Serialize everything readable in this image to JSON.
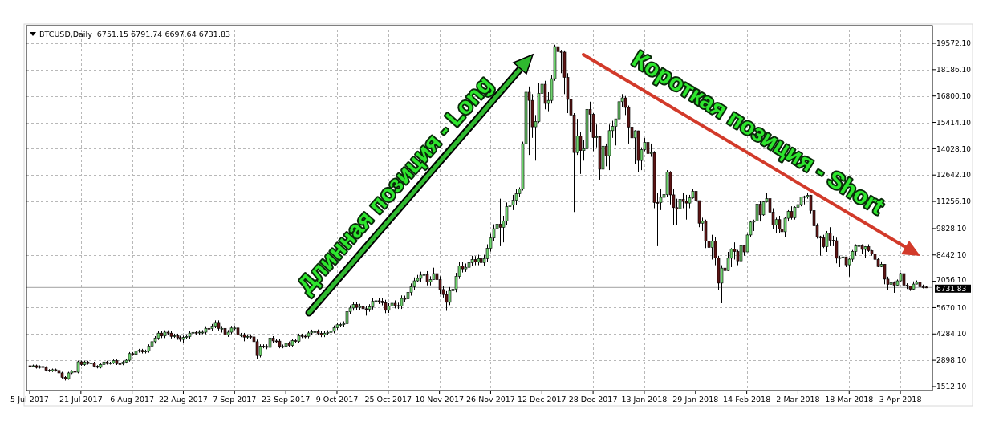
{
  "chart_data": {
    "type": "candlestick",
    "title": "BTCUSD,Daily  6751.15 6791.74 6697.64 6731.83",
    "xlim": [
      "2017-07-04",
      "2018-04-13"
    ],
    "ylim": [
      1300,
      20290
    ],
    "grid": true,
    "xticks": [
      {
        "value": "2017-07-05",
        "label": "5 Jul 2017"
      },
      {
        "value": "2017-07-21",
        "label": "21 Jul 2017"
      },
      {
        "value": "2017-08-06",
        "label": "6 Aug 2017"
      },
      {
        "value": "2017-08-22",
        "label": "22 Aug 2017"
      },
      {
        "value": "2017-09-07",
        "label": "7 Sep 2017"
      },
      {
        "value": "2017-09-23",
        "label": "23 Sep 2017"
      },
      {
        "value": "2017-10-09",
        "label": "9 Oct 2017"
      },
      {
        "value": "2017-10-25",
        "label": "25 Oct 2017"
      },
      {
        "value": "2017-11-10",
        "label": "10 Nov 2017"
      },
      {
        "value": "2017-11-26",
        "label": "26 Nov 2017"
      },
      {
        "value": "2017-12-12",
        "label": "12 Dec 2017"
      },
      {
        "value": "2017-12-28",
        "label": "28 Dec 2017"
      },
      {
        "value": "2018-01-13",
        "label": "13 Jan 2018"
      },
      {
        "value": "2018-01-29",
        "label": "29 Jan 2018"
      },
      {
        "value": "2018-02-14",
        "label": "14 Feb 2018"
      },
      {
        "value": "2018-03-02",
        "label": "2 Mar 2018"
      },
      {
        "value": "2018-03-18",
        "label": "18 Mar 2018"
      },
      {
        "value": "2018-04-03",
        "label": "3 Apr 2018"
      }
    ],
    "yticks": [
      {
        "value": 19572.1,
        "label": "19572.10"
      },
      {
        "value": 18186.1,
        "label": "18186.10"
      },
      {
        "value": 16800.1,
        "label": "16800.10"
      },
      {
        "value": 15414.1,
        "label": "15414.10"
      },
      {
        "value": 14028.1,
        "label": "14028.10"
      },
      {
        "value": 12642.1,
        "label": "12642.10"
      },
      {
        "value": 11256.1,
        "label": "11256.10"
      },
      {
        "value": 9828.1,
        "label": "9828.10"
      },
      {
        "value": 8442.1,
        "label": "8442.10"
      },
      {
        "value": 7056.1,
        "label": "7056.10"
      },
      {
        "value": 5670.1,
        "label": "5670.10"
      },
      {
        "value": 4284.1,
        "label": "4284.10"
      },
      {
        "value": 2898.1,
        "label": "2898.10"
      },
      {
        "value": 1512.1,
        "label": "1512.10"
      }
    ],
    "ref_lines": [
      {
        "axis": "y",
        "value": 6731.83,
        "label": "6731.83",
        "color": "#a0a0a0"
      }
    ],
    "annotations": [
      "Длинная позиция - Long",
      "Короткая позиция - Short"
    ],
    "x": [
      "2017-07-05",
      "2017-07-06",
      "2017-07-07",
      "2017-07-08",
      "2017-07-09",
      "2017-07-10",
      "2017-07-11",
      "2017-07-12",
      "2017-07-13",
      "2017-07-14",
      "2017-07-15",
      "2017-07-16",
      "2017-07-17",
      "2017-07-18",
      "2017-07-19",
      "2017-07-20",
      "2017-07-21",
      "2017-07-22",
      "2017-07-23",
      "2017-07-24",
      "2017-07-25",
      "2017-07-26",
      "2017-07-27",
      "2017-07-28",
      "2017-07-29",
      "2017-07-30",
      "2017-07-31",
      "2017-08-01",
      "2017-08-02",
      "2017-08-03",
      "2017-08-04",
      "2017-08-05",
      "2017-08-06",
      "2017-08-07",
      "2017-08-08",
      "2017-08-09",
      "2017-08-10",
      "2017-08-11",
      "2017-08-12",
      "2017-08-13",
      "2017-08-14",
      "2017-08-15",
      "2017-08-16",
      "2017-08-17",
      "2017-08-18",
      "2017-08-19",
      "2017-08-20",
      "2017-08-21",
      "2017-08-22",
      "2017-08-23",
      "2017-08-24",
      "2017-08-25",
      "2017-08-26",
      "2017-08-27",
      "2017-08-28",
      "2017-08-29",
      "2017-08-30",
      "2017-08-31",
      "2017-09-01",
      "2017-09-02",
      "2017-09-03",
      "2017-09-04",
      "2017-09-05",
      "2017-09-06",
      "2017-09-07",
      "2017-09-08",
      "2017-09-09",
      "2017-09-10",
      "2017-09-11",
      "2017-09-12",
      "2017-09-13",
      "2017-09-14",
      "2017-09-15",
      "2017-09-16",
      "2017-09-17",
      "2017-09-18",
      "2017-09-19",
      "2017-09-20",
      "2017-09-21",
      "2017-09-22",
      "2017-09-23",
      "2017-09-24",
      "2017-09-25",
      "2017-09-26",
      "2017-09-27",
      "2017-09-28",
      "2017-09-29",
      "2017-09-30",
      "2017-10-01",
      "2017-10-02",
      "2017-10-03",
      "2017-10-04",
      "2017-10-05",
      "2017-10-06",
      "2017-10-07",
      "2017-10-08",
      "2017-10-09",
      "2017-10-10",
      "2017-10-11",
      "2017-10-12",
      "2017-10-13",
      "2017-10-14",
      "2017-10-15",
      "2017-10-16",
      "2017-10-17",
      "2017-10-18",
      "2017-10-19",
      "2017-10-20",
      "2017-10-21",
      "2017-10-22",
      "2017-10-23",
      "2017-10-24",
      "2017-10-25",
      "2017-10-26",
      "2017-10-27",
      "2017-10-28",
      "2017-10-29",
      "2017-10-30",
      "2017-10-31",
      "2017-11-01",
      "2017-11-02",
      "2017-11-03",
      "2017-11-04",
      "2017-11-05",
      "2017-11-06",
      "2017-11-07",
      "2017-11-08",
      "2017-11-09",
      "2017-11-10",
      "2017-11-11",
      "2017-11-12",
      "2017-11-13",
      "2017-11-14",
      "2017-11-15",
      "2017-11-16",
      "2017-11-17",
      "2017-11-18",
      "2017-11-19",
      "2017-11-20",
      "2017-11-21",
      "2017-11-22",
      "2017-11-23",
      "2017-11-24",
      "2017-11-25",
      "2017-11-26",
      "2017-11-27",
      "2017-11-28",
      "2017-11-29",
      "2017-11-30",
      "2017-12-01",
      "2017-12-02",
      "2017-12-03",
      "2017-12-04",
      "2017-12-05",
      "2017-12-06",
      "2017-12-07",
      "2017-12-08",
      "2017-12-09",
      "2017-12-10",
      "2017-12-11",
      "2017-12-12",
      "2017-12-13",
      "2017-12-14",
      "2017-12-15",
      "2017-12-16",
      "2017-12-17",
      "2017-12-18",
      "2017-12-19",
      "2017-12-20",
      "2017-12-21",
      "2017-12-22",
      "2017-12-23",
      "2017-12-24",
      "2017-12-25",
      "2017-12-26",
      "2017-12-27",
      "2017-12-28",
      "2017-12-29",
      "2017-12-30",
      "2017-12-31",
      "2018-01-01",
      "2018-01-02",
      "2018-01-03",
      "2018-01-04",
      "2018-01-05",
      "2018-01-06",
      "2018-01-07",
      "2018-01-08",
      "2018-01-09",
      "2018-01-10",
      "2018-01-11",
      "2018-01-12",
      "2018-01-13",
      "2018-01-14",
      "2018-01-15",
      "2018-01-16",
      "2018-01-17",
      "2018-01-18",
      "2018-01-19",
      "2018-01-20",
      "2018-01-21",
      "2018-01-22",
      "2018-01-23",
      "2018-01-24",
      "2018-01-25",
      "2018-01-26",
      "2018-01-27",
      "2018-01-28",
      "2018-01-29",
      "2018-01-30",
      "2018-01-31",
      "2018-02-01",
      "2018-02-02",
      "2018-02-03",
      "2018-02-04",
      "2018-02-05",
      "2018-02-06",
      "2018-02-07",
      "2018-02-08",
      "2018-02-09",
      "2018-02-10",
      "2018-02-11",
      "2018-02-12",
      "2018-02-13",
      "2018-02-14",
      "2018-02-15",
      "2018-02-16",
      "2018-02-17",
      "2018-02-18",
      "2018-02-19",
      "2018-02-20",
      "2018-02-21",
      "2018-02-22",
      "2018-02-23",
      "2018-02-24",
      "2018-02-25",
      "2018-02-26",
      "2018-02-27",
      "2018-02-28",
      "2018-03-01",
      "2018-03-02",
      "2018-03-03",
      "2018-03-04",
      "2018-03-05",
      "2018-03-06",
      "2018-03-07",
      "2018-03-08",
      "2018-03-09",
      "2018-03-10",
      "2018-03-11",
      "2018-03-12",
      "2018-03-13",
      "2018-03-14",
      "2018-03-15",
      "2018-03-16",
      "2018-03-17",
      "2018-03-18",
      "2018-03-19",
      "2018-03-20",
      "2018-03-21",
      "2018-03-22",
      "2018-03-23",
      "2018-03-24",
      "2018-03-25",
      "2018-03-26",
      "2018-03-27",
      "2018-03-28",
      "2018-03-29",
      "2018-03-30",
      "2018-03-31",
      "2018-04-01",
      "2018-04-02",
      "2018-04-03",
      "2018-04-04",
      "2018-04-05",
      "2018-04-06",
      "2018-04-07",
      "2018-04-08",
      "2018-04-09",
      "2018-04-10",
      "2018-04-11"
    ],
    "ohlc": [
      [
        2610,
        2670,
        2550,
        2600
      ],
      [
        2600,
        2670,
        2540,
        2610
      ],
      [
        2610,
        2670,
        2460,
        2520
      ],
      [
        2520,
        2630,
        2460,
        2570
      ],
      [
        2570,
        2630,
        2460,
        2520
      ],
      [
        2520,
        2580,
        2310,
        2370
      ],
      [
        2370,
        2430,
        2280,
        2340
      ],
      [
        2340,
        2460,
        2280,
        2400
      ],
      [
        2400,
        2460,
        2300,
        2360
      ],
      [
        2360,
        2420,
        2170,
        2230
      ],
      [
        2230,
        2290,
        1940,
        2000
      ],
      [
        2000,
        2060,
        1830,
        1930
      ],
      [
        1930,
        2290,
        1870,
        2230
      ],
      [
        2230,
        2380,
        2170,
        2320
      ],
      [
        2320,
        2380,
        2210,
        2270
      ],
      [
        2270,
        2880,
        2210,
        2820
      ],
      [
        2820,
        2880,
        2610,
        2670
      ],
      [
        2670,
        2870,
        2610,
        2810
      ],
      [
        2810,
        2870,
        2670,
        2730
      ],
      [
        2730,
        2820,
        2670,
        2760
      ],
      [
        2760,
        2820,
        2520,
        2580
      ],
      [
        2580,
        2640,
        2470,
        2530
      ],
      [
        2530,
        2730,
        2470,
        2670
      ],
      [
        2670,
        2870,
        2610,
        2810
      ],
      [
        2810,
        2870,
        2670,
        2730
      ],
      [
        2730,
        2820,
        2670,
        2760
      ],
      [
        2760,
        2940,
        2700,
        2880
      ],
      [
        2880,
        2940,
        2650,
        2720
      ],
      [
        2720,
        2780,
        2640,
        2710
      ],
      [
        2710,
        2870,
        2640,
        2800
      ],
      [
        2800,
        2970,
        2730,
        2900
      ],
      [
        2900,
        3330,
        2830,
        3250
      ],
      [
        3250,
        3330,
        3130,
        3210
      ],
      [
        3210,
        3460,
        3130,
        3380
      ],
      [
        3380,
        3500,
        3300,
        3420
      ],
      [
        3420,
        3500,
        3260,
        3340
      ],
      [
        3340,
        3460,
        3260,
        3380
      ],
      [
        3380,
        3740,
        3300,
        3650
      ],
      [
        3650,
        3980,
        3560,
        3880
      ],
      [
        3880,
        4170,
        3780,
        4070
      ],
      [
        4070,
        4430,
        3970,
        4330
      ],
      [
        4330,
        4440,
        4070,
        4180
      ],
      [
        4180,
        4480,
        4070,
        4380
      ],
      [
        4380,
        4480,
        4220,
        4330
      ],
      [
        4330,
        4440,
        4050,
        4160
      ],
      [
        4160,
        4300,
        4080,
        4190
      ],
      [
        4190,
        4300,
        3980,
        4090
      ],
      [
        4090,
        4190,
        3890,
        4000
      ],
      [
        4000,
        4200,
        3790,
        4100
      ],
      [
        4100,
        4260,
        4040,
        4150
      ],
      [
        4150,
        4440,
        4040,
        4330
      ],
      [
        4330,
        4480,
        4220,
        4370
      ],
      [
        4370,
        4460,
        4240,
        4350
      ],
      [
        4350,
        4490,
        4240,
        4380
      ],
      [
        4380,
        4490,
        4270,
        4380
      ],
      [
        4380,
        4690,
        4270,
        4580
      ],
      [
        4580,
        4680,
        4460,
        4570
      ],
      [
        4570,
        4810,
        4460,
        4700
      ],
      [
        4700,
        5000,
        4590,
        4890
      ],
      [
        4890,
        5000,
        4470,
        4580
      ],
      [
        4580,
        4700,
        4360,
        4580
      ],
      [
        4580,
        4690,
        4130,
        4240
      ],
      [
        4240,
        4490,
        4130,
        4380
      ],
      [
        4380,
        4710,
        4270,
        4600
      ],
      [
        4600,
        4710,
        4490,
        4600
      ],
      [
        4600,
        4710,
        4120,
        4230
      ],
      [
        4230,
        4340,
        4120,
        4230
      ],
      [
        4230,
        4340,
        3900,
        4120
      ],
      [
        4120,
        4270,
        4010,
        4160
      ],
      [
        4160,
        4270,
        4020,
        4130
      ],
      [
        4130,
        4240,
        3770,
        3880
      ],
      [
        3880,
        3990,
        2980,
        3150
      ],
      [
        3150,
        3740,
        3050,
        3640
      ],
      [
        3640,
        3740,
        3530,
        3630
      ],
      [
        3630,
        3740,
        3480,
        3580
      ],
      [
        3580,
        4170,
        3480,
        4070
      ],
      [
        4070,
        4170,
        3820,
        3920
      ],
      [
        3920,
        4020,
        3810,
        3910
      ],
      [
        3910,
        4010,
        3530,
        3630
      ],
      [
        3630,
        3730,
        3530,
        3630
      ],
      [
        3630,
        3890,
        3530,
        3790
      ],
      [
        3790,
        3890,
        3580,
        3680
      ],
      [
        3680,
        4030,
        3580,
        3930
      ],
      [
        3930,
        4030,
        3790,
        3890
      ],
      [
        3890,
        4300,
        3790,
        4200
      ],
      [
        4200,
        4300,
        4070,
        4170
      ],
      [
        4170,
        4270,
        4060,
        4160
      ],
      [
        4160,
        4440,
        4060,
        4340
      ],
      [
        4340,
        4510,
        4230,
        4400
      ],
      [
        4400,
        4520,
        4290,
        4410
      ],
      [
        4410,
        4520,
        4210,
        4320
      ],
      [
        4320,
        4430,
        4120,
        4230
      ],
      [
        4230,
        4440,
        4120,
        4330
      ],
      [
        4330,
        4480,
        4220,
        4370
      ],
      [
        4370,
        4540,
        4260,
        4430
      ],
      [
        4430,
        4730,
        4320,
        4610
      ],
      [
        4610,
        4890,
        4500,
        4770
      ],
      [
        4770,
        4900,
        4650,
        4780
      ],
      [
        4780,
        4950,
        4670,
        4830
      ],
      [
        4830,
        5590,
        4710,
        5450
      ],
      [
        5450,
        5790,
        5310,
        5650
      ],
      [
        5650,
        5980,
        5510,
        5830
      ],
      [
        5830,
        5980,
        5530,
        5680
      ],
      [
        5680,
        5870,
        5540,
        5730
      ],
      [
        5730,
        5870,
        5460,
        5610
      ],
      [
        5610,
        5750,
        5250,
        5590
      ],
      [
        5590,
        5850,
        5450,
        5710
      ],
      [
        5710,
        6160,
        5570,
        6010
      ],
      [
        6010,
        6180,
        5880,
        6030
      ],
      [
        6030,
        6180,
        5860,
        6010
      ],
      [
        6010,
        6160,
        5790,
        5930
      ],
      [
        5930,
        6080,
        5380,
        5530
      ],
      [
        5530,
        5900,
        5390,
        5750
      ],
      [
        5750,
        6050,
        5600,
        5900
      ],
      [
        5900,
        6050,
        5630,
        5780
      ],
      [
        5780,
        5930,
        5600,
        5750
      ],
      [
        5750,
        6310,
        5600,
        6150
      ],
      [
        6150,
        6300,
        5980,
        6130
      ],
      [
        6130,
        6630,
        5980,
        6470
      ],
      [
        6470,
        6940,
        6300,
        6770
      ],
      [
        6770,
        7260,
        6600,
        7080
      ],
      [
        7080,
        7390,
        7030,
        7210
      ],
      [
        7210,
        7560,
        7030,
        7380
      ],
      [
        7380,
        7590,
        7230,
        7410
      ],
      [
        7410,
        7590,
        6840,
        7020
      ],
      [
        7020,
        7320,
        6840,
        7140
      ],
      [
        7140,
        7770,
        7140,
        7460
      ],
      [
        7460,
        7640,
        6950,
        7140
      ],
      [
        7140,
        7320,
        6400,
        6620
      ],
      [
        6620,
        6790,
        6200,
        6360
      ],
      [
        6360,
        6540,
        5500,
        5950
      ],
      [
        5950,
        6750,
        5800,
        6560
      ],
      [
        6560,
        6800,
        6460,
        6640
      ],
      [
        6640,
        7500,
        6480,
        7320
      ],
      [
        7320,
        8070,
        7180,
        7870
      ],
      [
        7870,
        8070,
        7520,
        7710
      ],
      [
        7710,
        7990,
        7550,
        7790
      ],
      [
        7790,
        8240,
        7620,
        8040
      ],
      [
        8040,
        8400,
        7870,
        8200
      ],
      [
        8200,
        8380,
        7900,
        8070
      ],
      [
        8070,
        8450,
        7900,
        8250
      ],
      [
        8250,
        8450,
        7870,
        8040
      ],
      [
        8040,
        8450,
        7870,
        8250
      ],
      [
        8250,
        9000,
        8080,
        8790
      ],
      [
        8790,
        9550,
        8620,
        9330
      ],
      [
        9330,
        10050,
        9150,
        9820
      ],
      [
        9820,
        10300,
        9640,
        10060
      ],
      [
        10060,
        11400,
        8900,
        9890
      ],
      [
        9890,
        10500,
        9100,
        10230
      ],
      [
        10230,
        11200,
        10000,
        10980
      ],
      [
        10980,
        11300,
        10750,
        11070
      ],
      [
        11070,
        11600,
        10800,
        11320
      ],
      [
        11320,
        11900,
        11050,
        11660
      ],
      [
        11660,
        12000,
        11500,
        11920
      ],
      [
        11920,
        14400,
        11830,
        14290
      ],
      [
        14290,
        17800,
        13900,
        17000
      ],
      [
        17000,
        17300,
        13700,
        16570
      ],
      [
        16570,
        16900,
        14600,
        15180
      ],
      [
        15180,
        15800,
        13400,
        15460
      ],
      [
        15460,
        17500,
        15400,
        16940
      ],
      [
        16940,
        17700,
        16600,
        17420
      ],
      [
        17420,
        17600,
        16100,
        16410
      ],
      [
        16410,
        17000,
        16000,
        16570
      ],
      [
        16570,
        17900,
        16400,
        17710
      ],
      [
        17710,
        19500,
        17600,
        19400
      ],
      [
        19400,
        19560,
        18600,
        19140
      ],
      [
        19140,
        19230,
        18000,
        19110
      ],
      [
        19110,
        19200,
        16900,
        17780
      ],
      [
        17780,
        18000,
        15900,
        16620
      ],
      [
        16620,
        17300,
        14800,
        15800
      ],
      [
        15800,
        15900,
        10700,
        13830
      ],
      [
        13830,
        15600,
        13700,
        14700
      ],
      [
        14700,
        14900,
        12700,
        13930
      ],
      [
        13930,
        14500,
        13400,
        14030
      ],
      [
        14030,
        16300,
        13900,
        16100
      ],
      [
        16100,
        16500,
        14900,
        15840
      ],
      [
        15840,
        15900,
        13900,
        14610
      ],
      [
        14610,
        15300,
        14100,
        14660
      ],
      [
        14660,
        14700,
        12400,
        12950
      ],
      [
        12950,
        14300,
        12800,
        14160
      ],
      [
        14160,
        14300,
        13100,
        13660
      ],
      [
        13660,
        15300,
        12900,
        14980
      ],
      [
        14980,
        15500,
        14600,
        15200
      ],
      [
        15200,
        15600,
        14200,
        15600
      ],
      [
        15600,
        16700,
        15000,
        16500
      ],
      [
        16500,
        16900,
        16200,
        16700
      ],
      [
        16700,
        16800,
        15800,
        16200
      ],
      [
        16200,
        16300,
        14300,
        15170
      ],
      [
        15170,
        15500,
        14300,
        14600
      ],
      [
        14600,
        15000,
        13200,
        14970
      ],
      [
        14970,
        14980,
        12800,
        13410
      ],
      [
        13410,
        14100,
        12900,
        13980
      ],
      [
        13980,
        14600,
        13900,
        14360
      ],
      [
        14360,
        14500,
        13300,
        13770
      ],
      [
        13770,
        14300,
        13600,
        13820
      ],
      [
        13820,
        13900,
        10900,
        11200
      ],
      [
        11200,
        11700,
        8900,
        11190
      ],
      [
        11190,
        11900,
        10800,
        11470
      ],
      [
        11470,
        11800,
        11100,
        11610
      ],
      [
        11610,
        12900,
        11500,
        12800
      ],
      [
        12800,
        12850,
        11100,
        11600
      ],
      [
        11600,
        11900,
        10000,
        10930
      ],
      [
        10930,
        11400,
        10000,
        10870
      ],
      [
        10870,
        11400,
        10500,
        11360
      ],
      [
        11360,
        11700,
        10900,
        11260
      ],
      [
        11260,
        11600,
        10300,
        11170
      ],
      [
        11170,
        11600,
        10900,
        11440
      ],
      [
        11440,
        11900,
        11400,
        11790
      ],
      [
        11790,
        11800,
        11100,
        11300
      ],
      [
        11300,
        11300,
        9900,
        10110
      ],
      [
        10110,
        10400,
        9700,
        10220
      ],
      [
        10220,
        10300,
        8800,
        9170
      ],
      [
        9170,
        9200,
        7700,
        8830
      ],
      [
        8830,
        9500,
        8200,
        9170
      ],
      [
        9170,
        9400,
        7900,
        8280
      ],
      [
        8280,
        8400,
        6600,
        6960
      ],
      [
        6960,
        7900,
        5900,
        7750
      ],
      [
        7750,
        8500,
        7300,
        7620
      ],
      [
        7620,
        8600,
        7600,
        8270
      ],
      [
        8270,
        8800,
        7800,
        8740
      ],
      [
        8740,
        9100,
        8200,
        8620
      ],
      [
        8620,
        8700,
        7900,
        8130
      ],
      [
        8130,
        8990,
        8130,
        8930
      ],
      [
        8930,
        8950,
        8400,
        8600
      ],
      [
        8600,
        9550,
        8600,
        9490
      ],
      [
        9490,
        10250,
        9400,
        10170
      ],
      [
        10170,
        10300,
        9700,
        10230
      ],
      [
        10230,
        11200,
        10100,
        11110
      ],
      [
        11110,
        11300,
        10200,
        10550
      ],
      [
        10550,
        11300,
        10500,
        11230
      ],
      [
        11230,
        11700,
        11200,
        11400
      ],
      [
        11400,
        11400,
        10300,
        10690
      ],
      [
        10690,
        10900,
        9800,
        10010
      ],
      [
        10010,
        10400,
        9600,
        10300
      ],
      [
        10300,
        10500,
        9600,
        9810
      ],
      [
        9810,
        9900,
        9300,
        9660
      ],
      [
        9660,
        10450,
        9400,
        10370
      ],
      [
        10370,
        10800,
        10200,
        10730
      ],
      [
        10730,
        11000,
        10300,
        10400
      ],
      [
        10400,
        11000,
        10300,
        10950
      ],
      [
        10950,
        11200,
        10700,
        11090
      ],
      [
        11090,
        11500,
        11000,
        11490
      ],
      [
        11490,
        11560,
        11100,
        11510
      ],
      [
        11510,
        11700,
        11400,
        11570
      ],
      [
        11570,
        11600,
        10600,
        10780
      ],
      [
        10780,
        10900,
        9500,
        9970
      ],
      [
        9970,
        10100,
        9300,
        9400
      ],
      [
        9400,
        9450,
        8400,
        9340
      ],
      [
        9340,
        9500,
        8800,
        8870
      ],
      [
        8870,
        9700,
        8600,
        9580
      ],
      [
        9580,
        9900,
        8900,
        9210
      ],
      [
        9210,
        9450,
        8900,
        9190
      ],
      [
        9190,
        9350,
        8000,
        8270
      ],
      [
        8270,
        8400,
        7800,
        8300
      ],
      [
        8300,
        8600,
        8100,
        8340
      ],
      [
        8340,
        8350,
        7800,
        7920
      ],
      [
        7920,
        8300,
        7300,
        8220
      ],
      [
        8220,
        8700,
        8100,
        8630
      ],
      [
        8630,
        9000,
        8400,
        8910
      ],
      [
        8910,
        9100,
        8800,
        8930
      ],
      [
        8930,
        9000,
        8500,
        8730
      ],
      [
        8730,
        8900,
        8300,
        8880
      ],
      [
        8880,
        9000,
        8600,
        8670
      ],
      [
        8670,
        8700,
        8400,
        8500
      ],
      [
        8500,
        8500,
        7900,
        8210
      ],
      [
        8210,
        8300,
        7800,
        7830
      ],
      [
        7830,
        8100,
        7800,
        7950
      ],
      [
        7950,
        7950,
        6900,
        7170
      ],
      [
        7170,
        7300,
        6600,
        6890
      ],
      [
        6890,
        7200,
        6850,
        6970
      ],
      [
        6970,
        7050,
        6450,
        6850
      ],
      [
        6850,
        7150,
        6800,
        7080
      ],
      [
        7080,
        7500,
        7050,
        7460
      ],
      [
        7460,
        7460,
        6800,
        6850
      ],
      [
        6850,
        6950,
        6650,
        6810
      ],
      [
        6810,
        6820,
        6550,
        6640
      ],
      [
        6640,
        7050,
        6600,
        6910
      ],
      [
        6910,
        7100,
        6900,
        7020
      ],
      [
        7020,
        7200,
        6650,
        6770
      ],
      [
        6770,
        6880,
        6680,
        6750
      ],
      [
        6751.15,
        6791.74,
        6697.64,
        6731.83
      ]
    ]
  }
}
